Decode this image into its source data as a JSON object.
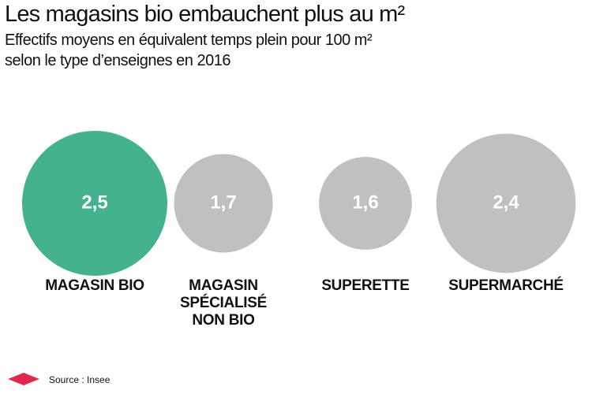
{
  "chart_data": {
    "type": "bubble",
    "title": "Les magasins bio embauchent plus au m²",
    "subtitle": [
      "Effectifs moyens en équivalent temps plein pour 100 m²",
      "selon le type d’enseignes en 2016"
    ],
    "categories": [
      "MAGASIN BIO",
      "MAGASIN SPÉCIALISÉ NON BIO",
      "SUPERETTE",
      "SUPERMARCHÉ"
    ],
    "values": [
      2.5,
      1.7,
      1.6,
      2.4
    ],
    "value_labels": [
      "2,5",
      "1,7",
      "1,6",
      "2,4"
    ],
    "colors": [
      "#45b28f",
      "#c0c0c0",
      "#c0c0c0",
      "#c0c0c0"
    ],
    "source": "Source : Insee"
  }
}
